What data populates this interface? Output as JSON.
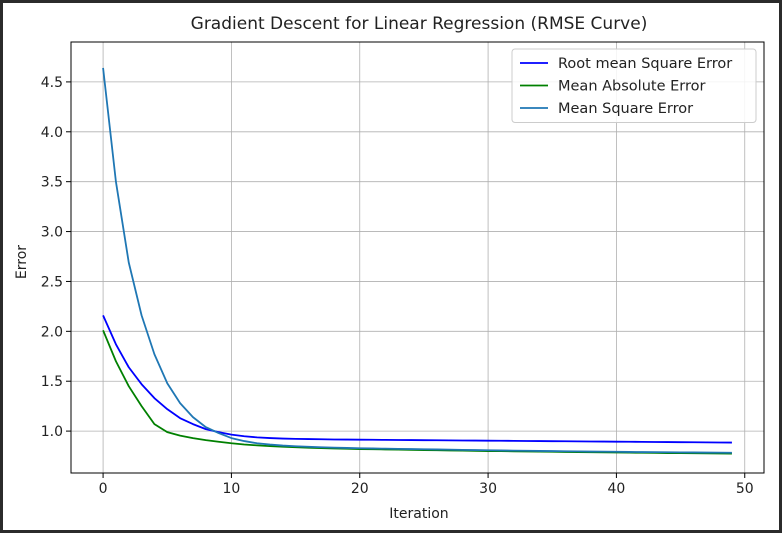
{
  "chart_data": {
    "type": "line",
    "title": "Gradient Descent for Linear Regression (RMSE Curve)",
    "xlabel": "Iteration",
    "ylabel": "Error",
    "xlim": [
      -2.5,
      51.5
    ],
    "ylim": [
      0.58,
      4.9
    ],
    "xticks": [
      0,
      10,
      20,
      30,
      40,
      50
    ],
    "yticks": [
      1.0,
      1.5,
      2.0,
      2.5,
      3.0,
      3.5,
      4.0,
      4.5
    ],
    "grid": true,
    "legend_position": "top-right",
    "series": [
      {
        "name": "Root mean Square Error",
        "color": "#0000ff",
        "x": [
          0,
          1,
          2,
          3,
          4,
          5,
          6,
          7,
          8,
          9,
          10,
          11,
          12,
          13,
          14,
          15,
          16,
          17,
          18,
          19,
          20,
          21,
          22,
          23,
          24,
          25,
          26,
          27,
          28,
          29,
          30,
          31,
          32,
          33,
          34,
          35,
          36,
          37,
          38,
          39,
          40,
          41,
          42,
          43,
          44,
          45,
          46,
          47,
          48,
          49
        ],
        "values": [
          2.16,
          1.87,
          1.64,
          1.47,
          1.33,
          1.22,
          1.13,
          1.07,
          1.02,
          0.99,
          0.965,
          0.948,
          0.937,
          0.93,
          0.925,
          0.922,
          0.92,
          0.918,
          0.916,
          0.915,
          0.914,
          0.913,
          0.912,
          0.911,
          0.91,
          0.909,
          0.908,
          0.907,
          0.906,
          0.905,
          0.904,
          0.903,
          0.902,
          0.901,
          0.9,
          0.899,
          0.898,
          0.897,
          0.896,
          0.895,
          0.894,
          0.893,
          0.892,
          0.891,
          0.89,
          0.889,
          0.888,
          0.887,
          0.886,
          0.885
        ]
      },
      {
        "name": "Mean Absolute Error",
        "color": "#008000",
        "x": [
          0,
          1,
          2,
          3,
          4,
          5,
          6,
          7,
          8,
          9,
          10,
          11,
          12,
          13,
          14,
          15,
          16,
          17,
          18,
          19,
          20,
          21,
          22,
          23,
          24,
          25,
          26,
          27,
          28,
          29,
          30,
          31,
          32,
          33,
          34,
          35,
          36,
          37,
          38,
          39,
          40,
          41,
          42,
          43,
          44,
          45,
          46,
          47,
          48,
          49
        ],
        "values": [
          2.01,
          1.7,
          1.45,
          1.25,
          1.07,
          0.99,
          0.955,
          0.93,
          0.91,
          0.893,
          0.878,
          0.866,
          0.857,
          0.849,
          0.843,
          0.838,
          0.833,
          0.829,
          0.826,
          0.823,
          0.82,
          0.818,
          0.816,
          0.814,
          0.812,
          0.81,
          0.808,
          0.806,
          0.804,
          0.802,
          0.8,
          0.799,
          0.797,
          0.796,
          0.794,
          0.793,
          0.791,
          0.79,
          0.788,
          0.787,
          0.786,
          0.784,
          0.783,
          0.782,
          0.78,
          0.779,
          0.778,
          0.777,
          0.776,
          0.775
        ]
      },
      {
        "name": "Mean Square Error",
        "color": "#1f77b4",
        "x": [
          0,
          1,
          2,
          3,
          4,
          5,
          6,
          7,
          8,
          9,
          10,
          11,
          12,
          13,
          14,
          15,
          16,
          17,
          18,
          19,
          20,
          21,
          22,
          23,
          24,
          25,
          26,
          27,
          28,
          29,
          30,
          31,
          32,
          33,
          34,
          35,
          36,
          37,
          38,
          39,
          40,
          41,
          42,
          43,
          44,
          45,
          46,
          47,
          48,
          49
        ],
        "values": [
          4.64,
          3.5,
          2.69,
          2.16,
          1.77,
          1.48,
          1.28,
          1.14,
          1.04,
          0.98,
          0.93,
          0.9,
          0.878,
          0.865,
          0.855,
          0.848,
          0.843,
          0.838,
          0.834,
          0.831,
          0.828,
          0.826,
          0.824,
          0.822,
          0.82,
          0.818,
          0.816,
          0.814,
          0.812,
          0.81,
          0.808,
          0.806,
          0.804,
          0.803,
          0.801,
          0.8,
          0.798,
          0.797,
          0.795,
          0.794,
          0.793,
          0.791,
          0.79,
          0.789,
          0.788,
          0.787,
          0.786,
          0.785,
          0.784,
          0.783
        ]
      }
    ]
  }
}
